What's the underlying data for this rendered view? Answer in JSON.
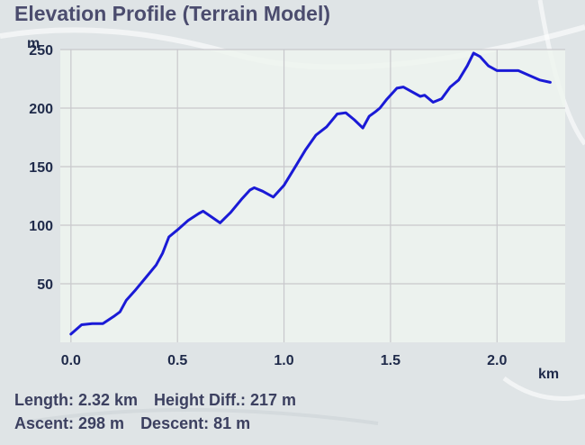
{
  "title": "Elevation Profile (Terrain Model)",
  "stats": {
    "length": "Length: 2.32 km",
    "height_diff": "Height Diff.: 217 m",
    "ascent": "Ascent: 298 m",
    "descent": "Descent: 81 m"
  },
  "colors": {
    "line": "#1a1ad6",
    "plot_bg": "#eef4ee",
    "grid": "#c8c8cc",
    "axis_text": "#1f2a4a",
    "title": "#4b4c6e"
  },
  "chart_data": {
    "type": "line",
    "title": "Elevation Profile (Terrain Model)",
    "xlabel": "km",
    "ylabel": "m",
    "xlim": [
      -0.05,
      2.32
    ],
    "ylim": [
      0,
      250
    ],
    "xticks": [
      0.0,
      0.5,
      1.0,
      1.5,
      2.0
    ],
    "xtick_labels": [
      "0.0",
      "0.5",
      "1.0",
      "1.5",
      "2.0"
    ],
    "yticks": [
      50,
      100,
      150,
      200,
      250
    ],
    "ytick_labels": [
      "50",
      "100",
      "150",
      "200",
      "250"
    ],
    "grid": true,
    "series": [
      {
        "x": [
          0.0,
          0.05,
          0.1,
          0.15,
          0.2,
          0.23,
          0.26,
          0.3,
          0.35,
          0.4,
          0.43,
          0.46,
          0.5,
          0.55,
          0.6,
          0.62,
          0.66,
          0.7,
          0.75,
          0.8,
          0.84,
          0.86,
          0.9,
          0.95,
          1.0,
          1.05,
          1.1,
          1.15,
          1.2,
          1.25,
          1.29,
          1.33,
          1.37,
          1.4,
          1.43,
          1.45,
          1.48,
          1.53,
          1.56,
          1.6,
          1.64,
          1.66,
          1.7,
          1.74,
          1.78,
          1.82,
          1.86,
          1.89,
          1.92,
          1.96,
          2.0,
          2.05,
          2.1,
          2.15,
          2.2,
          2.25
        ],
        "y": [
          7,
          15,
          16,
          16,
          22,
          26,
          36,
          44,
          55,
          66,
          76,
          90,
          96,
          104,
          110,
          112,
          107,
          102,
          111,
          122,
          130,
          132,
          129,
          124,
          134,
          149,
          164,
          177,
          184,
          195,
          196,
          190,
          183,
          193,
          197,
          200,
          207,
          217,
          218,
          214,
          210,
          211,
          205,
          208,
          218,
          224,
          236,
          247,
          244,
          236,
          232,
          232,
          232,
          228,
          224,
          222
        ]
      }
    ]
  }
}
